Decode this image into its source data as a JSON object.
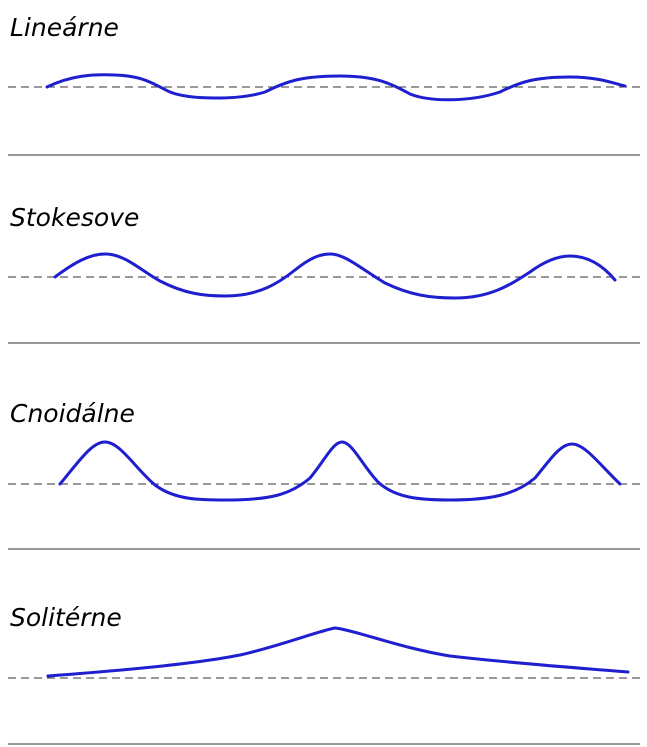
{
  "waves": [
    {
      "label": "Lineárne"
    },
    {
      "label": "Stokesove"
    },
    {
      "label": "Cnoidálne"
    },
    {
      "label": "Solitérne"
    }
  ]
}
